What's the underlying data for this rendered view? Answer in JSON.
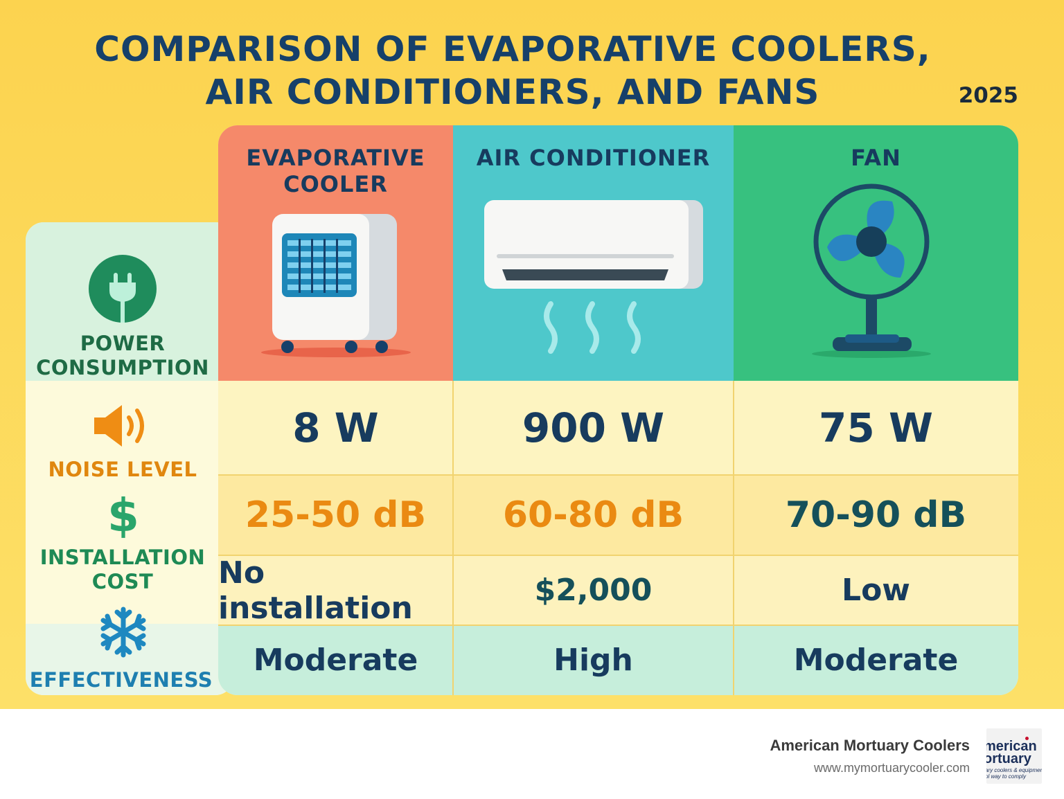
{
  "header": {
    "title_line1": "COMPARISON OF EVAPORATIVE COOLERS,",
    "title_line2": "AIR CONDITIONERS, AND FANS",
    "year": "2025"
  },
  "columns": [
    {
      "label_line1": "EVAPORATIVE",
      "label_line2": "COOLER",
      "icon": "evaporative-cooler-icon",
      "color": "#f5896a"
    },
    {
      "label_line1": "AIR CONDITIONER",
      "label_line2": "",
      "icon": "air-conditioner-icon",
      "color": "#4ec8cb"
    },
    {
      "label_line1": "FAN",
      "label_line2": "",
      "icon": "fan-icon",
      "color": "#37c17f"
    }
  ],
  "rows": [
    {
      "label_line1": "POWER",
      "label_line2": "CONSUMPTION",
      "icon": "plug-icon",
      "label_color": "#1e6b45",
      "values": [
        "8 W",
        "900 W",
        "75 W"
      ]
    },
    {
      "label_line1": "NOISE LEVEL",
      "label_line2": "",
      "icon": "speaker-icon",
      "label_color": "#e0870f",
      "values": [
        "25-50 dB",
        "60-80 dB",
        "70-90 dB"
      ]
    },
    {
      "label_line1": "INSTALLATION",
      "label_line2": "COST",
      "icon": "dollar-icon",
      "label_color": "#1e8a55",
      "values": [
        "No installation",
        "$2,000",
        "Low"
      ]
    },
    {
      "label_line1": "EFFECTIVENESS",
      "label_line2": "",
      "icon": "snowflake-icon",
      "label_color": "#1e7fb0",
      "values": [
        "Moderate",
        "High",
        "Moderate"
      ]
    }
  ],
  "value_colors": {
    "noise_warm": "#ea8a12",
    "noise_dark": "#15505a",
    "default": "#173b5e"
  },
  "footer": {
    "company": "American Mortuary Coolers",
    "url": "www.mymortuarycooler.com",
    "logo_line1": "merican",
    "logo_line2": "ortuary",
    "logo_line3": "ary coolers & equipment",
    "logo_line4": "ol way to comply"
  }
}
